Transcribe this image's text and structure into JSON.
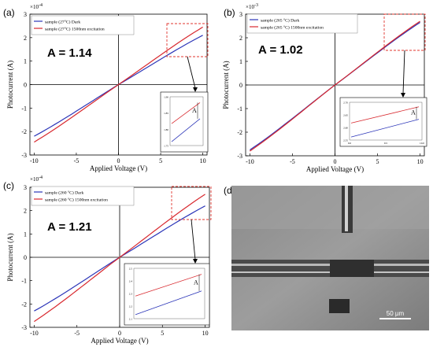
{
  "colors": {
    "dark": "#2b35b8",
    "excitation": "#d8282e",
    "callout_box": "#e0342e",
    "axis": "#000000"
  },
  "panels": [
    {
      "label": "(a)",
      "annotation": "A = 1.14",
      "exponent": "×10",
      "exponent_power": "-4",
      "ylabel": "Photocurrent (A)",
      "xlabel": "Applied Voltage (V)",
      "xticks": [
        "-10",
        "-5",
        "0",
        "5",
        "10"
      ],
      "yticks": [
        "-3",
        "-2",
        "-1",
        "0",
        "1",
        "2",
        "3"
      ],
      "legend": [
        "sample (27°C) Dark",
        "sample (27°C) 1500nm excitation"
      ],
      "inset_ticks": [
        "1.90",
        "1.85",
        "1.80",
        "1.75"
      ],
      "inset_ratio_label": "A"
    },
    {
      "label": "(b)",
      "annotation": "A = 1.02",
      "exponent": "×10",
      "exponent_power": "-3",
      "ylabel": "Photocurrent (A)",
      "xlabel": "Applied Voltage (V)",
      "xticks": [
        "-10",
        "-5",
        "0",
        "5",
        "10"
      ],
      "yticks": [
        "-3",
        "-2",
        "-1",
        "0",
        "1",
        "2",
        "3"
      ],
      "legend": [
        "sample (265 °C) Dark",
        "sample (265 °C) 1500nm excitation"
      ],
      "inset_ticks": [
        "2.70",
        "2.65",
        "2.60",
        "2.55"
      ],
      "inset_xticks": [
        "9.0",
        "9.5",
        "10.0"
      ],
      "inset_ratio_label": "A"
    },
    {
      "label": "(c)",
      "annotation": "A = 1.21",
      "exponent": "×10",
      "exponent_power": "-4",
      "ylabel": "Photocurrent (A)",
      "xlabel": "Applied Voltage (V)",
      "xticks": [
        "-10",
        "-5",
        "0",
        "5",
        "10"
      ],
      "yticks": [
        "-3",
        "-2",
        "-1",
        "0",
        "1",
        "2",
        "3"
      ],
      "legend": [
        "sample (260 °C) Dark",
        "sample (260 °C) 1500nm excitation"
      ],
      "inset_ticks": [
        "2.5",
        "2.4",
        "2.3",
        "2.2",
        "2.1"
      ],
      "inset_ratio_label": "A"
    }
  ],
  "panel_d": {
    "label": "(d)",
    "scale_bar": "50 µm"
  },
  "chart_data": [
    {
      "type": "line",
      "x": [
        -10,
        10
      ],
      "series": [
        {
          "name": "sample (27°C) Dark",
          "values": [
            -2.2,
            2.1
          ]
        },
        {
          "name": "sample (27°C) 1500nm excitation",
          "values": [
            -2.45,
            2.45
          ]
        }
      ],
      "xlabel": "Applied Voltage (V)",
      "ylabel": "Photocurrent (A)",
      "xlim": [
        -10.5,
        10.5
      ],
      "ylim": [
        -3,
        3
      ],
      "y_scale_factor": "1e-4",
      "annotation": "A = 1.14"
    },
    {
      "type": "line",
      "x": [
        -10,
        10
      ],
      "series": [
        {
          "name": "sample (265 °C) Dark",
          "values": [
            -2.75,
            2.65
          ]
        },
        {
          "name": "sample (265 °C) 1500nm excitation",
          "values": [
            -2.8,
            2.7
          ]
        }
      ],
      "xlabel": "Applied Voltage (V)",
      "ylabel": "Photocurrent (A)",
      "xlim": [
        -10.5,
        10.5
      ],
      "ylim": [
        -3,
        3
      ],
      "y_scale_factor": "1e-3",
      "annotation": "A = 1.02"
    },
    {
      "type": "line",
      "x": [
        -10,
        10
      ],
      "series": [
        {
          "name": "sample (260 °C) Dark",
          "values": [
            -2.3,
            2.2
          ]
        },
        {
          "name": "sample (260 °C) 1500nm excitation",
          "values": [
            -2.75,
            2.7
          ]
        }
      ],
      "xlabel": "Applied Voltage (V)",
      "ylabel": "Photocurrent (A)",
      "xlim": [
        -10.5,
        10.5
      ],
      "ylim": [
        -3,
        3
      ],
      "y_scale_factor": "1e-4",
      "annotation": "A = 1.21"
    }
  ]
}
